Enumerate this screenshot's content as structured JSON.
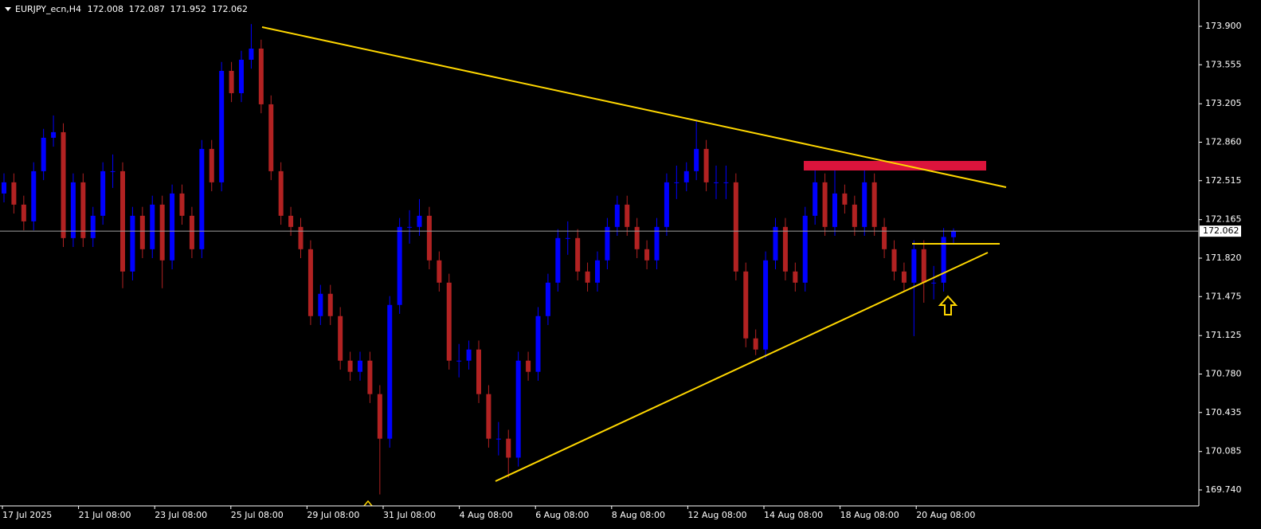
{
  "chart_data": {
    "type": "candlestick",
    "symbol": "EURJPY_ecn,H4",
    "up_color": "#0000ff",
    "down_color": "#b22222",
    "ylim": [
      169.597,
      174.136
    ],
    "yticks": [
      {
        "value": 173.9,
        "label": "173.900"
      },
      173.555,
      173.205,
      {
        "value": 172.86,
        "label": "172.860"
      },
      172.515,
      172.165,
      {
        "value": 171.82,
        "label": "171.820"
      },
      171.475,
      171.125,
      {
        "value": 170.78,
        "label": "170.780"
      },
      170.435,
      170.085,
      {
        "value": 169.74,
        "label": "169.740"
      }
    ],
    "x_labels": [
      "17 Jul 2025",
      "21 Jul 08:00",
      "23 Jul 08:00",
      "25 Jul 08:00",
      "29 Jul 08:00",
      "31 Jul 08:00",
      "4 Aug 08:00",
      "6 Aug 08:00",
      "8 Aug 08:00",
      "12 Aug 08:00",
      "14 Aug 08:00",
      "18 Aug 08:00",
      "20 Aug 08:00"
    ],
    "open": [
      172.4,
      172.5,
      172.3,
      172.15,
      172.6,
      172.9,
      172.95,
      172.0,
      172.5,
      172.0,
      172.2,
      172.6,
      172.6,
      171.7,
      172.2,
      171.9,
      172.3,
      171.8,
      172.4,
      172.2,
      171.9,
      172.8,
      172.5,
      173.5,
      173.3,
      173.6,
      173.7,
      173.2,
      172.6,
      172.2,
      172.1,
      171.9,
      171.3,
      171.5,
      171.3,
      170.9,
      170.8,
      170.9,
      170.6,
      170.2,
      171.4,
      172.1,
      172.1,
      172.2,
      171.8,
      171.6,
      170.9,
      170.9,
      171.0,
      170.6,
      170.2,
      170.2,
      170.03,
      170.9,
      170.8,
      171.3,
      171.6,
      172.0,
      172.0,
      171.7,
      171.6,
      171.8,
      172.1,
      172.3,
      172.1,
      171.9,
      171.8,
      172.1,
      172.5,
      172.5,
      172.6,
      172.8,
      172.5,
      172.5,
      172.5,
      171.7,
      171.1,
      171.0,
      171.8,
      172.1,
      171.7,
      171.6,
      172.2,
      172.5,
      172.1,
      172.4,
      172.3,
      172.1,
      172.5,
      172.1,
      171.9,
      171.7,
      171.6,
      171.9,
      171.6,
      171.6,
      172.008
    ],
    "high": [
      172.58,
      172.58,
      172.38,
      172.68,
      172.98,
      173.1,
      173.03,
      172.58,
      172.58,
      172.28,
      172.68,
      172.75,
      172.68,
      172.28,
      172.28,
      172.38,
      172.38,
      172.48,
      172.48,
      172.28,
      172.88,
      172.88,
      173.58,
      173.58,
      173.68,
      173.92,
      173.78,
      173.28,
      172.68,
      172.28,
      172.18,
      171.98,
      171.58,
      171.58,
      171.38,
      170.98,
      170.98,
      170.98,
      170.68,
      171.48,
      172.18,
      172.25,
      172.35,
      172.28,
      171.88,
      171.68,
      171.05,
      171.08,
      171.08,
      170.68,
      170.35,
      170.28,
      170.98,
      170.98,
      171.38,
      171.68,
      172.08,
      172.15,
      172.08,
      171.78,
      171.88,
      172.18,
      172.38,
      172.38,
      172.18,
      171.98,
      172.18,
      172.58,
      172.65,
      172.68,
      173.05,
      172.88,
      172.65,
      172.65,
      172.58,
      171.78,
      171.18,
      171.88,
      172.18,
      172.18,
      171.78,
      172.28,
      172.65,
      172.58,
      172.65,
      172.48,
      172.38,
      172.68,
      172.58,
      172.18,
      171.98,
      171.78,
      171.98,
      171.98,
      171.75,
      172.09,
      172.087
    ],
    "low": [
      172.32,
      172.22,
      172.07,
      172.07,
      172.52,
      172.82,
      171.92,
      171.92,
      171.92,
      171.92,
      172.12,
      172.45,
      171.55,
      171.62,
      171.82,
      171.82,
      171.55,
      171.72,
      172.12,
      171.82,
      171.82,
      172.42,
      172.42,
      173.22,
      173.22,
      173.52,
      173.12,
      172.52,
      172.12,
      172.02,
      171.82,
      171.22,
      171.22,
      171.22,
      170.82,
      170.72,
      170.72,
      170.52,
      169.7,
      170.12,
      171.32,
      171.95,
      172.02,
      171.72,
      171.52,
      170.82,
      170.75,
      170.82,
      170.52,
      170.12,
      170.05,
      169.85,
      169.95,
      170.72,
      170.72,
      171.22,
      171.52,
      171.85,
      171.62,
      171.52,
      171.52,
      171.72,
      172.02,
      172.02,
      171.82,
      171.72,
      171.72,
      172.02,
      172.35,
      172.42,
      172.52,
      172.42,
      172.35,
      172.35,
      171.62,
      171.02,
      170.95,
      170.92,
      171.72,
      171.62,
      171.52,
      171.52,
      172.12,
      172.02,
      172.02,
      172.22,
      172.02,
      172.02,
      172.02,
      171.82,
      171.62,
      171.52,
      171.12,
      171.42,
      171.45,
      171.52,
      171.952
    ],
    "close": [
      172.5,
      172.3,
      172.15,
      172.6,
      172.9,
      172.95,
      172.0,
      172.5,
      172.0,
      172.2,
      172.6,
      172.6,
      171.7,
      172.2,
      171.9,
      172.3,
      171.8,
      172.4,
      172.2,
      171.9,
      172.8,
      172.5,
      173.5,
      173.3,
      173.6,
      173.7,
      173.2,
      172.6,
      172.2,
      172.1,
      171.9,
      171.3,
      171.5,
      171.3,
      170.9,
      170.8,
      170.9,
      170.6,
      170.2,
      171.4,
      172.1,
      172.1,
      172.2,
      171.8,
      171.6,
      170.9,
      170.9,
      171.0,
      170.6,
      170.2,
      170.2,
      170.03,
      170.9,
      170.8,
      171.3,
      171.6,
      172.0,
      172.0,
      171.7,
      171.6,
      171.8,
      172.1,
      172.3,
      172.1,
      171.9,
      171.8,
      172.1,
      172.5,
      172.5,
      172.6,
      172.8,
      172.5,
      172.5,
      172.5,
      171.7,
      171.1,
      171.0,
      171.8,
      172.1,
      171.7,
      171.6,
      172.2,
      172.5,
      172.1,
      172.4,
      172.3,
      172.1,
      172.5,
      172.1,
      171.9,
      171.7,
      171.6,
      171.9,
      171.6,
      171.6,
      172.01,
      172.062
    ]
  }
}
